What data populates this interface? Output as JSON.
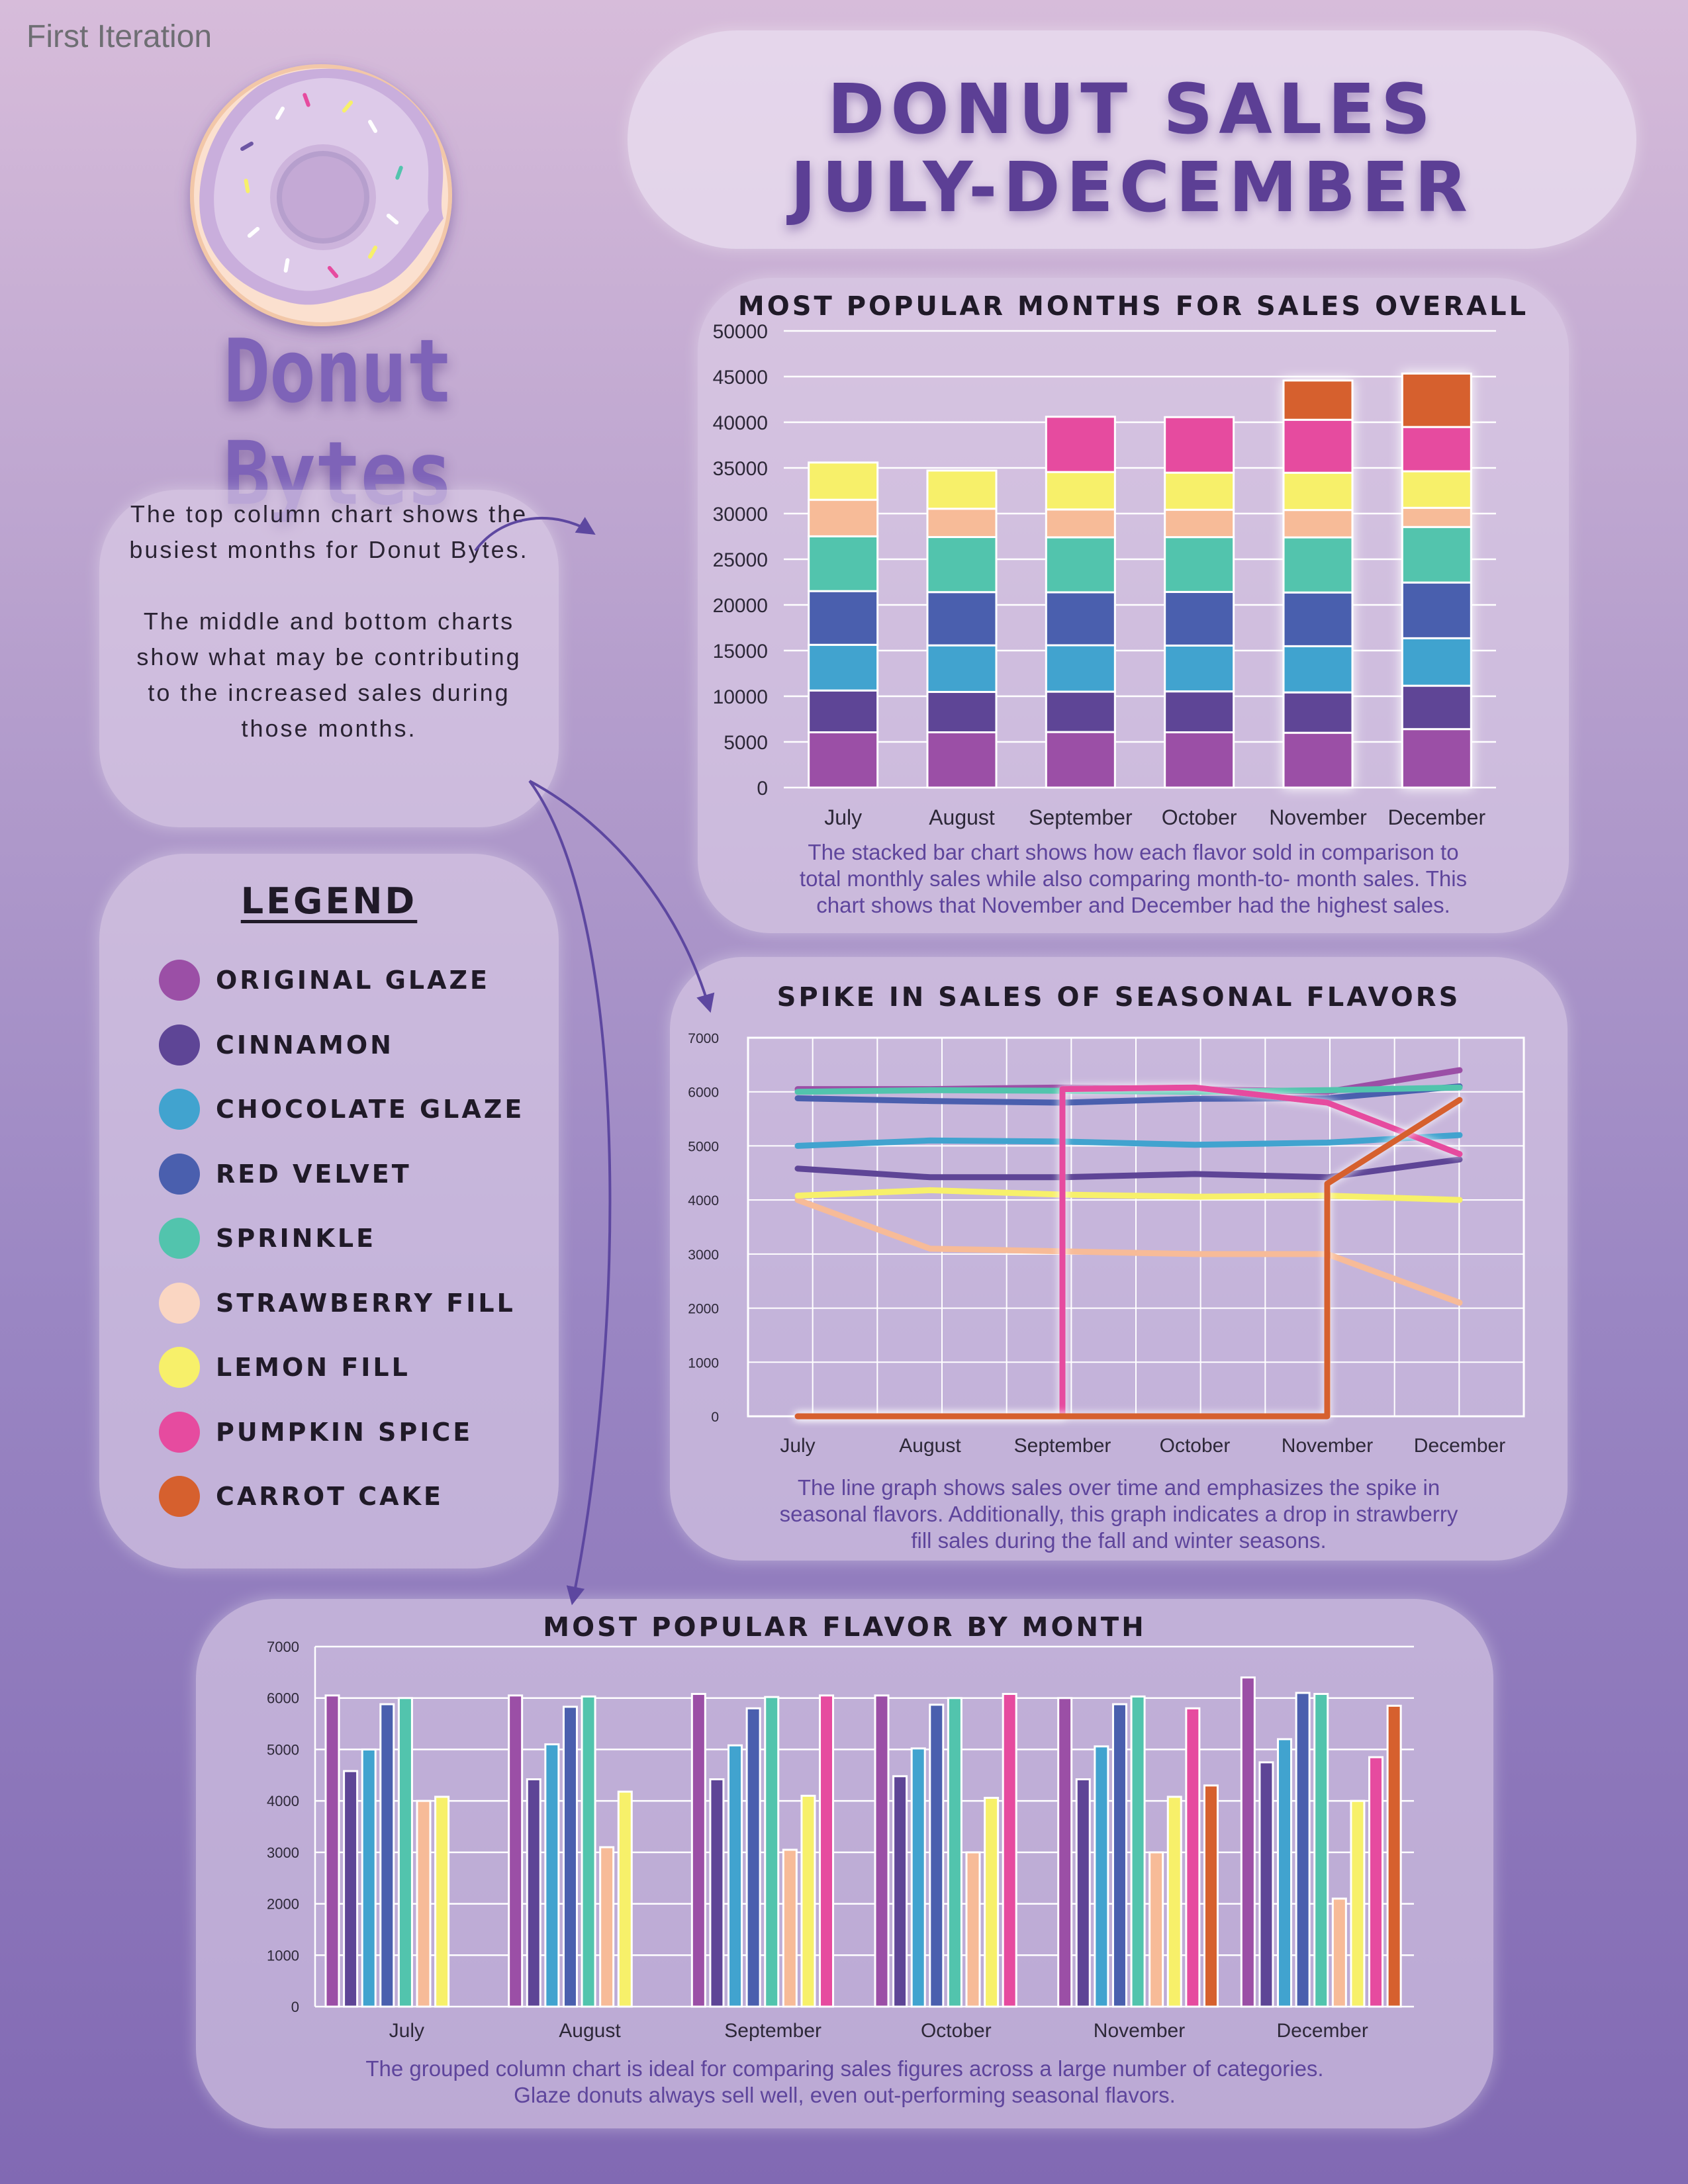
{
  "header": {
    "iteration_label": "First Iteration",
    "brand_name": "Donut Bytes",
    "title_line1": "DONUT SALES",
    "title_line2": "JULY-DECEMBER"
  },
  "intro": {
    "paragraph1": "The top column chart shows the busiest months for Donut Bytes.",
    "paragraph2": "The middle and bottom charts show what may be contributing to the increased sales during those months."
  },
  "legend": {
    "title": "LEGEND",
    "items": [
      {
        "label": "ORIGINAL GLAZE",
        "color": "#9b4fa6"
      },
      {
        "label": "CINNAMON",
        "color": "#5e4596"
      },
      {
        "label": "CHOCOLATE GLAZE",
        "color": "#41a3cf"
      },
      {
        "label": "RED VELVET",
        "color": "#4a5fae"
      },
      {
        "label": "SPRINKLE",
        "color": "#52c4ad"
      },
      {
        "label": "STRAWBERRY FILL",
        "color": "#fad6c2"
      },
      {
        "label": "LEMON FILL",
        "color": "#f7f06a"
      },
      {
        "label": "PUMPKIN SPICE",
        "color": "#e64b9f"
      },
      {
        "label": "CARROT CAKE",
        "color": "#d6602e"
      }
    ]
  },
  "chart_data": [
    {
      "type": "bar",
      "stacked": true,
      "title": "MOST POPULAR MONTHS FOR SALES OVERALL",
      "caption_lines": [
        "The stacked bar chart shows how each flavor sold in comparison to",
        "total monthly sales while also comparing month-to- month sales. This",
        "chart shows that November and December had the highest sales."
      ],
      "categories": [
        "July",
        "August",
        "September",
        "October",
        "November",
        "December"
      ],
      "ylim": [
        0,
        50000
      ],
      "yticks": [
        0,
        5000,
        10000,
        15000,
        20000,
        25000,
        30000,
        35000,
        40000,
        45000,
        50000
      ],
      "highlight": [
        "November",
        "December"
      ],
      "series_colors": [
        "#9b4fa6",
        "#5e4596",
        "#41a3cf",
        "#4a5fae",
        "#52c4ad",
        "#f7bb98",
        "#f7f06a",
        "#e64b9f",
        "#d6602e"
      ],
      "series": [
        {
          "name": "ORIGINAL GLAZE",
          "values": [
            6050,
            6050,
            6080,
            6050,
            6000,
            6400
          ]
        },
        {
          "name": "CINNAMON",
          "values": [
            4580,
            4420,
            4420,
            4480,
            4420,
            4750
          ]
        },
        {
          "name": "CHOCOLATE GLAZE",
          "values": [
            5000,
            5100,
            5080,
            5020,
            5060,
            5200
          ]
        },
        {
          "name": "RED VELVET",
          "values": [
            5880,
            5830,
            5800,
            5870,
            5880,
            6100
          ]
        },
        {
          "name": "SPRINKLE",
          "values": [
            6000,
            6030,
            6020,
            6000,
            6030,
            6080
          ]
        },
        {
          "name": "STRAWBERRY FILL",
          "values": [
            4000,
            3100,
            3050,
            3000,
            3000,
            2100
          ]
        },
        {
          "name": "LEMON FILL",
          "values": [
            4080,
            4180,
            4100,
            4060,
            4080,
            4000
          ]
        },
        {
          "name": "PUMPKIN SPICE",
          "values": [
            0,
            0,
            6050,
            6080,
            5800,
            4850
          ]
        },
        {
          "name": "CARROT CAKE",
          "values": [
            0,
            0,
            0,
            0,
            4300,
            5850
          ]
        }
      ]
    },
    {
      "type": "line",
      "title": "SPIKE IN SALES OF SEASONAL FLAVORS",
      "caption_lines": [
        "The line graph shows sales over time and emphasizes the spike in",
        "seasonal flavors. Additionally, this graph indicates a drop in strawberry",
        "fill sales during the fall and winter seasons."
      ],
      "categories": [
        "July",
        "August",
        "September",
        "October",
        "November",
        "December"
      ],
      "ylim": [
        0,
        7000
      ],
      "yticks": [
        0,
        1000,
        2000,
        3000,
        4000,
        5000,
        6000,
        7000
      ],
      "series_colors": [
        "#9b4fa6",
        "#5e4596",
        "#41a3cf",
        "#4a5fae",
        "#52c4ad",
        "#f7bb98",
        "#f7f06a",
        "#e64b9f",
        "#d6602e"
      ],
      "series": [
        {
          "name": "ORIGINAL GLAZE",
          "values": [
            6050,
            6050,
            6080,
            6050,
            6000,
            6400
          ]
        },
        {
          "name": "CINNAMON",
          "values": [
            4580,
            4420,
            4420,
            4480,
            4420,
            4750
          ]
        },
        {
          "name": "CHOCOLATE GLAZE",
          "values": [
            5000,
            5100,
            5080,
            5020,
            5060,
            5200
          ]
        },
        {
          "name": "RED VELVET",
          "values": [
            5880,
            5830,
            5800,
            5870,
            5880,
            6100
          ]
        },
        {
          "name": "SPRINKLE",
          "values": [
            6000,
            6030,
            6020,
            6000,
            6030,
            6080
          ]
        },
        {
          "name": "STRAWBERRY FILL",
          "values": [
            4000,
            3100,
            3050,
            3000,
            3000,
            2100
          ]
        },
        {
          "name": "LEMON FILL",
          "values": [
            4080,
            4180,
            4100,
            4060,
            4080,
            4000
          ]
        },
        {
          "name": "PUMPKIN SPICE",
          "values": [
            0,
            0,
            6050,
            6080,
            5800,
            4850
          ]
        },
        {
          "name": "CARROT CAKE",
          "values": [
            0,
            0,
            0,
            0,
            4300,
            5850
          ]
        }
      ]
    },
    {
      "type": "bar",
      "grouped": true,
      "title": "MOST POPULAR FLAVOR BY MONTH",
      "caption_lines": [
        "The grouped column chart is ideal for comparing sales figures across a large number of categories.",
        "Glaze donuts always sell well, even out-performing seasonal flavors."
      ],
      "categories": [
        "July",
        "August",
        "September",
        "October",
        "November",
        "December"
      ],
      "ylim": [
        0,
        7000
      ],
      "yticks": [
        0,
        1000,
        2000,
        3000,
        4000,
        5000,
        6000,
        7000
      ],
      "series_colors": [
        "#9b4fa6",
        "#5e4596",
        "#41a3cf",
        "#4a5fae",
        "#52c4ad",
        "#f7bb98",
        "#f7f06a",
        "#e64b9f",
        "#d6602e"
      ],
      "series": [
        {
          "name": "ORIGINAL GLAZE",
          "values": [
            6050,
            6050,
            6080,
            6050,
            6000,
            6400
          ]
        },
        {
          "name": "CINNAMON",
          "values": [
            4580,
            4420,
            4420,
            4480,
            4420,
            4750
          ]
        },
        {
          "name": "CHOCOLATE GLAZE",
          "values": [
            5000,
            5100,
            5080,
            5020,
            5060,
            5200
          ]
        },
        {
          "name": "RED VELVET",
          "values": [
            5880,
            5830,
            5800,
            5870,
            5880,
            6100
          ]
        },
        {
          "name": "SPRINKLE",
          "values": [
            6000,
            6030,
            6020,
            6000,
            6030,
            6080
          ]
        },
        {
          "name": "STRAWBERRY FILL",
          "values": [
            4000,
            3100,
            3050,
            3000,
            3000,
            2100
          ]
        },
        {
          "name": "LEMON FILL",
          "values": [
            4080,
            4180,
            4100,
            4060,
            4080,
            4000
          ]
        },
        {
          "name": "PUMPKIN SPICE",
          "values": [
            0,
            0,
            6050,
            6080,
            5800,
            4850
          ]
        },
        {
          "name": "CARROT CAKE",
          "values": [
            0,
            0,
            0,
            0,
            4300,
            5850
          ]
        }
      ]
    }
  ]
}
